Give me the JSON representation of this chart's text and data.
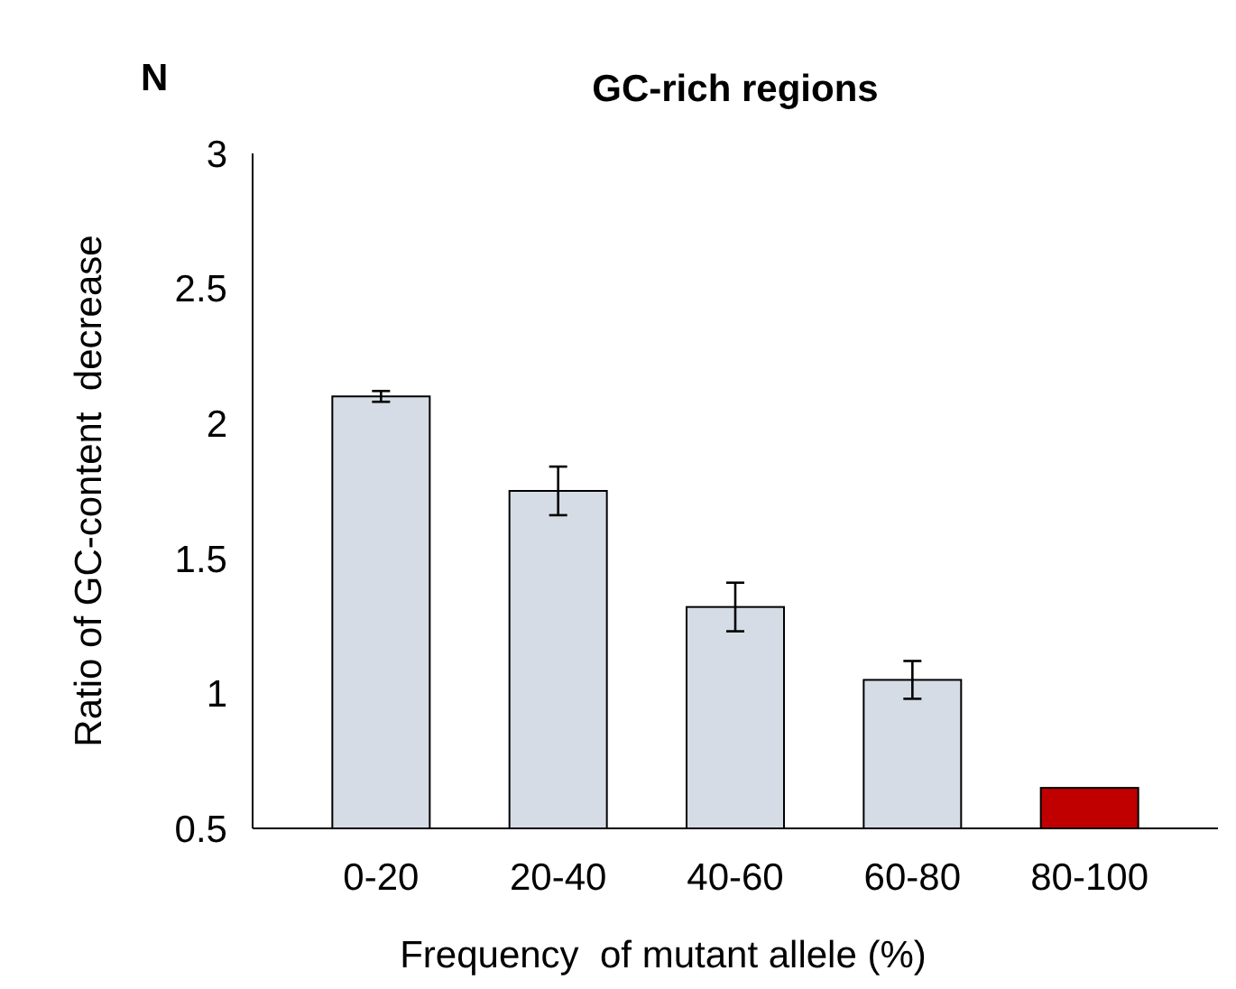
{
  "chart_data": {
    "type": "bar",
    "title": "GC-rich regions",
    "xlabel": "Frequency  of mutant allele (%)",
    "ylabel": "Ratio of GC-content  decrease",
    "annotations": [
      "N"
    ],
    "categories": [
      "0-20",
      "20-40",
      "40-60",
      "60-80",
      "80-100"
    ],
    "values": [
      2.1,
      1.75,
      1.32,
      1.05,
      0.65
    ],
    "errors": [
      0.02,
      0.09,
      0.09,
      0.07,
      null
    ],
    "colors": [
      "#d6dce5",
      "#d6dce5",
      "#d6dce5",
      "#d6dce5",
      "#c00000"
    ],
    "ylim": [
      0.5,
      3
    ],
    "yticks": [
      0.5,
      1,
      1.5,
      2,
      2.5,
      3
    ],
    "grid": false
  }
}
